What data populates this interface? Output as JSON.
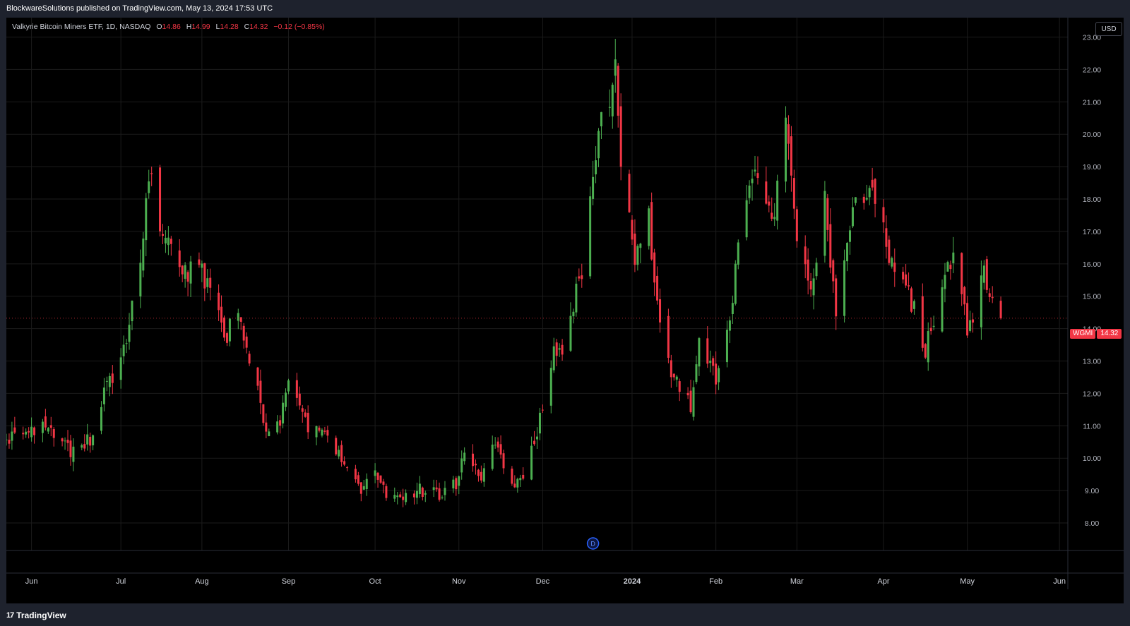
{
  "header": {
    "published": "BlockwareSolutions published on TradingView.com, May 13, 2024 17:53 UTC"
  },
  "legend": {
    "name": "Valkyrie Bitcoin Miners ETF, 1D, NASDAQ",
    "o_label": "O",
    "o_value": "14.86",
    "h_label": "H",
    "h_value": "14.99",
    "l_label": "L",
    "l_value": "14.28",
    "c_label": "C",
    "c_value": "14.32",
    "change": "−0.12 (−0.85%)"
  },
  "currency_button": "USD",
  "last_price_tag": {
    "symbol": "WGMI",
    "price": "14.32"
  },
  "event_marker": "D",
  "footer": {
    "brand": "TradingView",
    "brand_mark": "17"
  },
  "colors": {
    "up": "#4caf50",
    "down": "#f23645",
    "background": "#000000",
    "grid": "#1b1b1b",
    "text": "#d1d4dc"
  },
  "chart_data": {
    "type": "candlestick",
    "ticker": "WGMI",
    "interval": "1D",
    "y_ticks": [
      "8.00",
      "9.00",
      "10.00",
      "11.00",
      "12.00",
      "13.00",
      "14.00",
      "15.00",
      "16.00",
      "17.00",
      "18.00",
      "19.00",
      "20.00",
      "21.00",
      "22.00",
      "23.00"
    ],
    "x_ticks": [
      {
        "label": "Jun",
        "date": "2023-06-01"
      },
      {
        "label": "Jul",
        "date": "2023-07-03"
      },
      {
        "label": "Aug",
        "date": "2023-08-01"
      },
      {
        "label": "Sep",
        "date": "2023-09-01"
      },
      {
        "label": "Oct",
        "date": "2023-10-02"
      },
      {
        "label": "Nov",
        "date": "2023-11-01"
      },
      {
        "label": "Dec",
        "date": "2023-12-01"
      },
      {
        "label": "2024",
        "date": "2024-01-02"
      },
      {
        "label": "Feb",
        "date": "2024-02-01"
      },
      {
        "label": "Mar",
        "date": "2024-03-01"
      },
      {
        "label": "Apr",
        "date": "2024-04-01"
      },
      {
        "label": "May",
        "date": "2024-05-01"
      },
      {
        "label": "Jun",
        "date": "2024-06-03"
      }
    ],
    "x_range": [
      "2023-05-23",
      "2024-06-06"
    ],
    "y_range": [
      7.15,
      23.6
    ],
    "event_date": "2023-12-19",
    "last_close": 14.32,
    "waypoints": [
      {
        "date": "2023-05-23",
        "close": 10.5
      },
      {
        "date": "2023-06-05",
        "close": 10.9
      },
      {
        "date": "2023-06-15",
        "close": 10.2
      },
      {
        "date": "2023-06-23",
        "close": 10.6
      },
      {
        "date": "2023-06-27",
        "close": 12.0
      },
      {
        "date": "2023-07-05",
        "close": 13.5
      },
      {
        "date": "2023-07-10",
        "close": 16.2
      },
      {
        "date": "2023-07-13",
        "close": 19.0
      },
      {
        "date": "2023-07-17",
        "close": 17.0
      },
      {
        "date": "2023-07-21",
        "close": 16.8
      },
      {
        "date": "2023-07-26",
        "close": 15.7
      },
      {
        "date": "2023-07-31",
        "close": 15.9
      },
      {
        "date": "2023-08-04",
        "close": 15.0
      },
      {
        "date": "2023-08-10",
        "close": 13.8
      },
      {
        "date": "2023-08-14",
        "close": 14.5
      },
      {
        "date": "2023-08-18",
        "close": 13.1
      },
      {
        "date": "2023-08-24",
        "close": 11.0
      },
      {
        "date": "2023-08-29",
        "close": 11.0
      },
      {
        "date": "2023-09-01",
        "close": 12.4
      },
      {
        "date": "2023-09-07",
        "close": 11.0
      },
      {
        "date": "2023-09-14",
        "close": 10.9
      },
      {
        "date": "2023-09-21",
        "close": 9.8
      },
      {
        "date": "2023-09-28",
        "close": 9.0
      },
      {
        "date": "2023-10-02",
        "close": 9.6
      },
      {
        "date": "2023-10-06",
        "close": 8.8
      },
      {
        "date": "2023-10-12",
        "close": 8.9
      },
      {
        "date": "2023-10-18",
        "close": 9.0
      },
      {
        "date": "2023-10-25",
        "close": 8.9
      },
      {
        "date": "2023-10-31",
        "close": 9.2
      },
      {
        "date": "2023-11-03",
        "close": 10.2
      },
      {
        "date": "2023-11-09",
        "close": 9.5
      },
      {
        "date": "2023-11-14",
        "close": 10.6
      },
      {
        "date": "2023-11-20",
        "close": 9.2
      },
      {
        "date": "2023-11-24",
        "close": 9.6
      },
      {
        "date": "2023-11-28",
        "close": 10.5
      },
      {
        "date": "2023-12-01",
        "close": 11.6
      },
      {
        "date": "2023-12-05",
        "close": 13.5
      },
      {
        "date": "2023-12-08",
        "close": 13.0
      },
      {
        "date": "2023-12-12",
        "close": 14.6
      },
      {
        "date": "2023-12-15",
        "close": 15.9
      },
      {
        "date": "2023-12-20",
        "close": 19.6
      },
      {
        "date": "2023-12-27",
        "close": 22.0
      },
      {
        "date": "2023-12-29",
        "close": 19.0
      },
      {
        "date": "2024-01-03",
        "close": 16.1
      },
      {
        "date": "2024-01-08",
        "close": 17.3
      },
      {
        "date": "2024-01-12",
        "close": 14.2
      },
      {
        "date": "2024-01-17",
        "close": 12.4
      },
      {
        "date": "2024-01-23",
        "close": 11.7
      },
      {
        "date": "2024-01-26",
        "close": 13.4
      },
      {
        "date": "2024-02-01",
        "close": 12.4
      },
      {
        "date": "2024-02-07",
        "close": 15.0
      },
      {
        "date": "2024-02-12",
        "close": 18.3
      },
      {
        "date": "2024-02-16",
        "close": 19.0
      },
      {
        "date": "2024-02-21",
        "close": 17.0
      },
      {
        "date": "2024-02-26",
        "close": 21.0
      },
      {
        "date": "2024-03-01",
        "close": 17.0
      },
      {
        "date": "2024-03-06",
        "close": 15.0
      },
      {
        "date": "2024-03-11",
        "close": 18.0
      },
      {
        "date": "2024-03-15",
        "close": 14.4
      },
      {
        "date": "2024-03-22",
        "close": 18.0
      },
      {
        "date": "2024-03-28",
        "close": 18.5
      },
      {
        "date": "2024-04-03",
        "close": 16.2
      },
      {
        "date": "2024-04-10",
        "close": 15.2
      },
      {
        "date": "2024-04-16",
        "close": 13.3
      },
      {
        "date": "2024-04-23",
        "close": 15.5
      },
      {
        "date": "2024-04-26",
        "close": 16.4
      },
      {
        "date": "2024-05-01",
        "close": 14.0
      },
      {
        "date": "2024-05-07",
        "close": 15.6
      },
      {
        "date": "2024-05-13",
        "close": 14.32
      }
    ],
    "note_on_data": "Daily candles are generated along the price path shown by the waypoints (values read off the price axis)."
  }
}
